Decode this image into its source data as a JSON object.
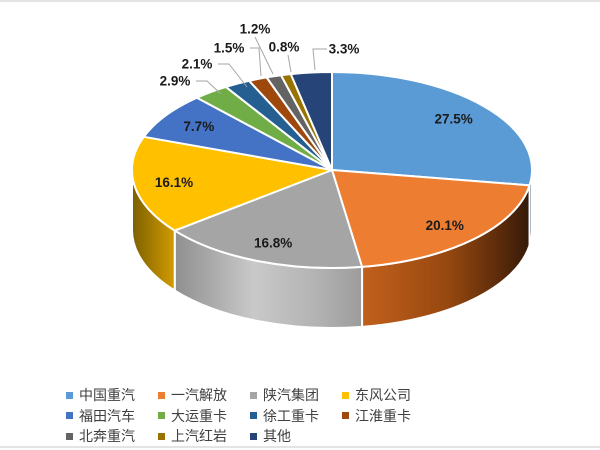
{
  "page": {
    "background": "#FFFFFF",
    "rule_color": "#E4E4E4"
  },
  "chart_data": {
    "type": "pie",
    "style": "3d",
    "title": "",
    "legend_position": "bottom",
    "start_angle_deg": 0,
    "direction": "clockwise",
    "series": [
      {
        "label": "中国重汽",
        "value": 27.5,
        "display": "27.5%",
        "color": "#5B9BD5",
        "label_placement": "inside"
      },
      {
        "label": "一汽解放",
        "value": 20.1,
        "display": "20.1%",
        "color": "#ED7D31",
        "label_placement": "inside"
      },
      {
        "label": "陕汽集团",
        "value": 16.8,
        "display": "16.8%",
        "color": "#A5A5A5",
        "label_placement": "inside"
      },
      {
        "label": "东风公司",
        "value": 16.1,
        "display": "16.1%",
        "color": "#FFC000",
        "label_placement": "inside"
      },
      {
        "label": "福田汽车",
        "value": 7.7,
        "display": "7.7%",
        "color": "#4472C4",
        "label_placement": "inside"
      },
      {
        "label": "大运重卡",
        "value": 2.9,
        "display": "2.9%",
        "color": "#70AD47",
        "label_placement": "outside"
      },
      {
        "label": "徐工重卡",
        "value": 2.1,
        "display": "2.1%",
        "color": "#255E91",
        "label_placement": "outside"
      },
      {
        "label": "江淮重卡",
        "value": 1.5,
        "display": "1.5%",
        "color": "#9E480E",
        "label_placement": "outside"
      },
      {
        "label": "北奔重汽",
        "value": 1.2,
        "display": "1.2%",
        "color": "#636363",
        "label_placement": "outside"
      },
      {
        "label": "上汽红岩",
        "value": 0.8,
        "display": "0.8%",
        "color": "#997300",
        "label_placement": "outside"
      },
      {
        "label": "其他",
        "value": 3.3,
        "display": "3.3%",
        "color": "#264478",
        "label_placement": "outside"
      }
    ],
    "label_color": "#1A1A1A",
    "leader_line_color": "#A6A6A6",
    "separator_color": "#FFFFFF",
    "legend_text_color": "#404040"
  }
}
